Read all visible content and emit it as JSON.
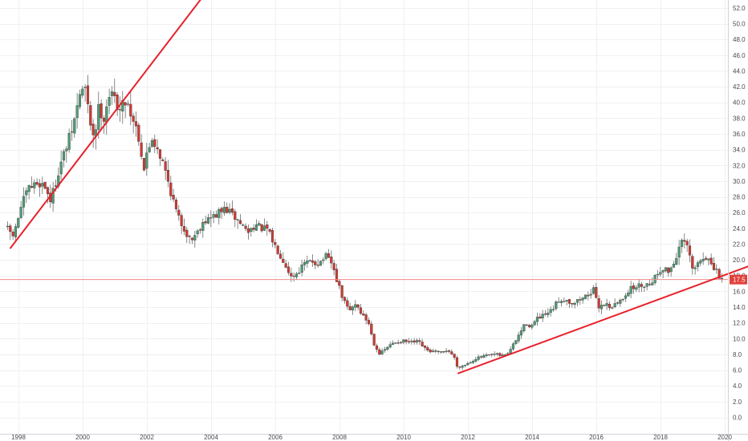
{
  "chart_data": {
    "type": "candlestick",
    "title": "",
    "xlabel": "",
    "ylabel": "",
    "x_range": [
      1997.5,
      2020.75
    ],
    "ylim": [
      -1.2,
      53.2
    ],
    "y_ticks": [
      0,
      2,
      4,
      6,
      8,
      10,
      12,
      14,
      16,
      18,
      20,
      22,
      24,
      26,
      28,
      30,
      32,
      34,
      36,
      38,
      40,
      42,
      44,
      46,
      48,
      50,
      52
    ],
    "y_tick_labels": [
      "0.0",
      "2.0",
      "4.0",
      "6.0",
      "8.0",
      "10.0",
      "12.0",
      "14.0",
      "16.0",
      "18.0",
      "20.0",
      "22.0",
      "24.0",
      "26.0",
      "28.0",
      "30.0",
      "32.0",
      "34.0",
      "36.0",
      "38.0",
      "40.0",
      "42.0",
      "44.0",
      "46.0",
      "48.0",
      "50.0",
      "52.0"
    ],
    "x_ticks": [
      1998,
      2000,
      2002,
      2004,
      2006,
      2008,
      2010,
      2012,
      2014,
      2016,
      2018,
      2020
    ],
    "x_tick_labels": [
      "1998",
      "2000",
      "2002",
      "2004",
      "2006",
      "2008",
      "2010",
      "2012",
      "2014",
      "2016",
      "2018",
      "2020"
    ],
    "grid": true,
    "colors": {
      "up": "#4f9a76",
      "down": "#cf3a32",
      "trendline": "#e8212b",
      "price_line": "#f08a8a",
      "price_tag": "#e0413c",
      "grid": "#eef0f3"
    },
    "current_price": {
      "value": 17.5,
      "label": "17.5"
    },
    "price_path": [
      [
        1997.62,
        24.2
      ],
      [
        1997.9,
        23.0
      ],
      [
        1998.1,
        26.5
      ],
      [
        1998.35,
        29.0
      ],
      [
        1998.65,
        29.8
      ],
      [
        1998.85,
        29.5
      ],
      [
        1999.05,
        27.5
      ],
      [
        1999.3,
        31.5
      ],
      [
        1999.55,
        34.5
      ],
      [
        1999.75,
        37.0
      ],
      [
        1999.95,
        41.0
      ],
      [
        2000.1,
        42.2
      ],
      [
        2000.25,
        38.0
      ],
      [
        2000.4,
        35.5
      ],
      [
        2000.55,
        39.5
      ],
      [
        2000.7,
        38.0
      ],
      [
        2000.85,
        41.0
      ],
      [
        2001.05,
        40.5
      ],
      [
        2001.2,
        39.0
      ],
      [
        2001.4,
        40.5
      ],
      [
        2001.55,
        38.5
      ],
      [
        2001.75,
        36.5
      ],
      [
        2001.95,
        31.5
      ],
      [
        2002.05,
        33.5
      ],
      [
        2002.2,
        35.5
      ],
      [
        2002.4,
        34.0
      ],
      [
        2002.6,
        31.5
      ],
      [
        2002.8,
        28.5
      ],
      [
        2003.0,
        25.5
      ],
      [
        2003.2,
        24.0
      ],
      [
        2003.4,
        22.5
      ],
      [
        2003.6,
        23.5
      ],
      [
        2003.8,
        25.0
      ],
      [
        2004.0,
        25.2
      ],
      [
        2004.3,
        26.0
      ],
      [
        2004.5,
        26.5
      ],
      [
        2004.75,
        25.5
      ],
      [
        2005.0,
        24.5
      ],
      [
        2005.2,
        23.5
      ],
      [
        2005.4,
        24.5
      ],
      [
        2005.6,
        24.0
      ],
      [
        2005.8,
        23.8
      ],
      [
        2006.0,
        22.0
      ],
      [
        2006.15,
        21.0
      ],
      [
        2006.35,
        19.5
      ],
      [
        2006.55,
        17.8
      ],
      [
        2006.75,
        18.5
      ],
      [
        2006.95,
        19.5
      ],
      [
        2007.2,
        19.8
      ],
      [
        2007.4,
        19.5
      ],
      [
        2007.6,
        20.5
      ],
      [
        2007.8,
        19.5
      ],
      [
        2007.95,
        17.5
      ],
      [
        2008.15,
        15.0
      ],
      [
        2008.35,
        13.5
      ],
      [
        2008.55,
        14.5
      ],
      [
        2008.75,
        13.0
      ],
      [
        2008.95,
        12.0
      ],
      [
        2009.1,
        9.5
      ],
      [
        2009.3,
        8.0
      ],
      [
        2009.5,
        8.8
      ],
      [
        2009.75,
        9.5
      ],
      [
        2010.0,
        9.7
      ],
      [
        2010.25,
        9.5
      ],
      [
        2010.5,
        9.6
      ],
      [
        2010.75,
        8.5
      ],
      [
        2011.0,
        8.3
      ],
      [
        2011.25,
        8.2
      ],
      [
        2011.4,
        8.6
      ],
      [
        2011.6,
        7.8
      ],
      [
        2011.7,
        6.5
      ],
      [
        2011.85,
        6.5
      ],
      [
        2012.1,
        7.0
      ],
      [
        2012.3,
        7.5
      ],
      [
        2012.6,
        7.8
      ],
      [
        2012.9,
        8.0
      ],
      [
        2013.1,
        7.8
      ],
      [
        2013.3,
        8.2
      ],
      [
        2013.5,
        9.5
      ],
      [
        2013.7,
        11.0
      ],
      [
        2013.85,
        12.0
      ],
      [
        2014.0,
        11.5
      ],
      [
        2014.2,
        12.5
      ],
      [
        2014.45,
        13.0
      ],
      [
        2014.65,
        13.5
      ],
      [
        2014.85,
        14.8
      ],
      [
        2015.05,
        15.0
      ],
      [
        2015.3,
        14.5
      ],
      [
        2015.55,
        15.0
      ],
      [
        2015.75,
        15.5
      ],
      [
        2015.95,
        16.2
      ],
      [
        2016.1,
        14.0
      ],
      [
        2016.3,
        14.5
      ],
      [
        2016.5,
        14.0
      ],
      [
        2016.7,
        14.5
      ],
      [
        2016.85,
        15.0
      ],
      [
        2017.0,
        16.0
      ],
      [
        2017.2,
        16.5
      ],
      [
        2017.45,
        16.8
      ],
      [
        2017.7,
        17.0
      ],
      [
        2017.9,
        18.0
      ],
      [
        2018.1,
        19.0
      ],
      [
        2018.3,
        18.5
      ],
      [
        2018.5,
        20.0
      ],
      [
        2018.65,
        22.0
      ],
      [
        2018.8,
        22.3
      ],
      [
        2018.95,
        20.5
      ],
      [
        2019.05,
        18.5
      ],
      [
        2019.2,
        19.5
      ],
      [
        2019.35,
        20.2
      ],
      [
        2019.5,
        20.5
      ],
      [
        2019.6,
        19.2
      ],
      [
        2019.7,
        18.8
      ],
      [
        2019.8,
        18.5
      ],
      [
        2019.9,
        17.5
      ]
    ],
    "trendlines": [
      {
        "name": "support-1997",
        "start": [
          1997.75,
          21.5
        ],
        "end": [
          2003.7,
          53.2
        ]
      },
      {
        "name": "support-2011",
        "start": [
          2011.7,
          5.6
        ],
        "end": [
          2020.75,
          19.2
        ]
      }
    ],
    "horizontal_lines": [
      {
        "y": 17.5
      }
    ]
  }
}
